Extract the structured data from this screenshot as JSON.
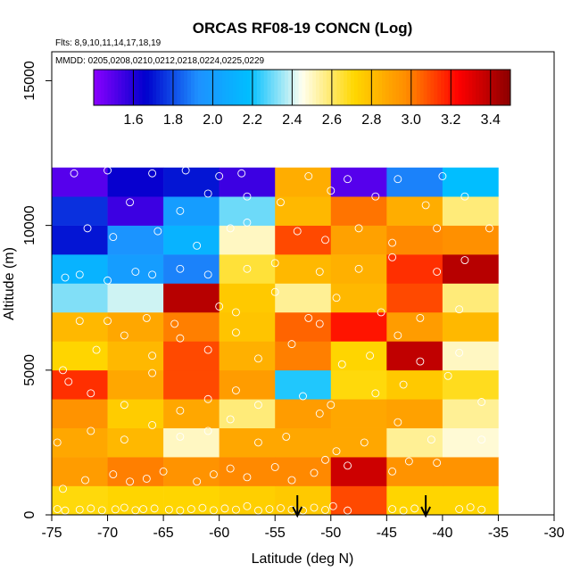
{
  "chart_data": {
    "type": "heatmap",
    "title": "ORCAS RF08-19 CONCN (Log)",
    "subtitle_flights": "Flts: 8,9,10,11,14,17,18,19",
    "subtitle_dates": "MMDD: 0205,0208,0210,0212,0218,0224,0225,0229",
    "xlabel": "Latitude (deg N)",
    "ylabel": "Altitude (m)",
    "xlim": [
      -75,
      -30
    ],
    "ylim": [
      0,
      16000
    ],
    "x_ticks": [
      "-75",
      "-70",
      "-65",
      "-60",
      "-55",
      "-50",
      "-45",
      "-40",
      "-35",
      "-30"
    ],
    "y_ticks": [
      "0",
      "5000",
      "10000",
      "15000"
    ],
    "colorbar": {
      "range": [
        1.4,
        3.5
      ],
      "ticks": [
        "1.6",
        "1.8",
        "2.0",
        "2.2",
        "2.4",
        "2.6",
        "2.8",
        "3.0",
        "3.2",
        "3.4"
      ],
      "colors": [
        "#8b00ff",
        "#0000cd",
        "#1e90ff",
        "#00bfff",
        "#fffff0",
        "#ffd700",
        "#ff8c00",
        "#ff0000",
        "#8b0000"
      ]
    },
    "x_bins": [
      -75,
      -70,
      -65,
      -60,
      -55,
      -50,
      -45,
      -40,
      -35
    ],
    "y_bins": [
      0,
      1000,
      2000,
      3000,
      4000,
      5000,
      6000,
      7000,
      8000,
      9000,
      10000,
      11000,
      12000
    ],
    "cells": [
      [
        2.7,
        2.72,
        2.72,
        2.74,
        2.76,
        3.1,
        2.72,
        2.72
      ],
      [
        2.92,
        3.0,
        2.95,
        2.98,
        2.98,
        3.35,
        2.95,
        2.95
      ],
      [
        2.88,
        2.82,
        2.5,
        2.88,
        2.88,
        2.88,
        2.55,
        2.48
      ],
      [
        2.95,
        2.75,
        2.88,
        2.58,
        2.92,
        2.88,
        2.9,
        2.55
      ],
      [
        3.15,
        2.88,
        3.1,
        2.92,
        2.22,
        2.7,
        2.76,
        2.68
      ],
      [
        2.72,
        2.82,
        3.1,
        2.85,
        3.0,
        2.72,
        3.38,
        2.5
      ],
      [
        2.82,
        2.88,
        3.0,
        2.78,
        3.05,
        3.2,
        2.92,
        2.82
      ],
      [
        2.32,
        2.4,
        3.4,
        2.76,
        2.55,
        2.82,
        3.1,
        2.58
      ],
      [
        2.12,
        2.0,
        1.9,
        2.65,
        2.82,
        2.85,
        3.15,
        3.4
      ],
      [
        1.7,
        1.95,
        2.12,
        2.5,
        3.1,
        2.9,
        2.98,
        2.96
      ],
      [
        1.75,
        1.55,
        2.0,
        2.3,
        2.82,
        3.02,
        2.86,
        2.58
      ],
      [
        1.5,
        1.65,
        1.7,
        1.55,
        2.86,
        1.5,
        1.9,
        2.18
      ]
    ],
    "grid": false,
    "legend": "colorbar-top-inside",
    "markers": {
      "arrows_at_latitude": [
        -53,
        -41.5
      ],
      "points": [
        [
          -74.5,
          200
        ],
        [
          -73.8,
          150
        ],
        [
          -72.5,
          180
        ],
        [
          -71.5,
          220
        ],
        [
          -70.5,
          160
        ],
        [
          -69.3,
          190
        ],
        [
          -68.5,
          250
        ],
        [
          -67.5,
          160
        ],
        [
          -66.8,
          200
        ],
        [
          -65.8,
          220
        ],
        [
          -64.5,
          180
        ],
        [
          -63.5,
          150
        ],
        [
          -62.5,
          200
        ],
        [
          -61.5,
          240
        ],
        [
          -60.5,
          160
        ],
        [
          -59.5,
          220
        ],
        [
          -58.5,
          180
        ],
        [
          -57.5,
          300
        ],
        [
          -56.5,
          150
        ],
        [
          -55.5,
          200
        ],
        [
          -54.5,
          230
        ],
        [
          -53.5,
          180
        ],
        [
          -52.5,
          150
        ],
        [
          -51.5,
          250
        ],
        [
          -50.5,
          170
        ],
        [
          -49.8,
          300
        ],
        [
          -48.5,
          150
        ],
        [
          -44.5,
          200
        ],
        [
          -43.5,
          150
        ],
        [
          -42.5,
          220
        ],
        [
          -38.5,
          200
        ],
        [
          -37.5,
          260
        ],
        [
          -36.5,
          180
        ],
        [
          -74.0,
          900
        ],
        [
          -72.0,
          1200
        ],
        [
          -69.5,
          1400
        ],
        [
          -68.0,
          1150
        ],
        [
          -66.5,
          1250
        ],
        [
          -65.0,
          1500
        ],
        [
          -62.0,
          1150
        ],
        [
          -60.5,
          1400
        ],
        [
          -59.0,
          1600
        ],
        [
          -57.5,
          1300
        ],
        [
          -55.0,
          1650
        ],
        [
          -53.5,
          1200
        ],
        [
          -51.5,
          1450
        ],
        [
          -50.5,
          1900
        ],
        [
          -48.5,
          1700
        ],
        [
          -44.5,
          1500
        ],
        [
          -43.0,
          1850
        ],
        [
          -40.5,
          1800
        ],
        [
          -74.5,
          2500
        ],
        [
          -71.5,
          2900
        ],
        [
          -68.5,
          2600
        ],
        [
          -66.0,
          3100
        ],
        [
          -63.5,
          2700
        ],
        [
          -61.0,
          2900
        ],
        [
          -59.0,
          3300
        ],
        [
          -56.5,
          2500
        ],
        [
          -54.0,
          2700
        ],
        [
          -51.0,
          3500
        ],
        [
          -49.5,
          2200
        ],
        [
          -47.0,
          2500
        ],
        [
          -44.0,
          3200
        ],
        [
          -41.0,
          2600
        ],
        [
          -36.5,
          2600
        ],
        [
          -73.5,
          4600
        ],
        [
          -71.5,
          4200
        ],
        [
          -68.5,
          3800
        ],
        [
          -66.0,
          4900
        ],
        [
          -63.5,
          3600
        ],
        [
          -61.0,
          4000
        ],
        [
          -58.5,
          4300
        ],
        [
          -56.5,
          3800
        ],
        [
          -52.5,
          4100
        ],
        [
          -50.0,
          3800
        ],
        [
          -46.0,
          4200
        ],
        [
          -43.5,
          4500
        ],
        [
          -39.5,
          4800
        ],
        [
          -36.5,
          3900
        ],
        [
          -74.0,
          5000
        ],
        [
          -71.0,
          5700
        ],
        [
          -68.5,
          6200
        ],
        [
          -66.0,
          5500
        ],
        [
          -63.5,
          6100
        ],
        [
          -61.0,
          5700
        ],
        [
          -58.5,
          6300
        ],
        [
          -56.5,
          5400
        ],
        [
          -53.5,
          5900
        ],
        [
          -51.0,
          6600
        ],
        [
          -49.0,
          5200
        ],
        [
          -46.5,
          5500
        ],
        [
          -44.0,
          6200
        ],
        [
          -42.0,
          5300
        ],
        [
          -38.5,
          5600
        ],
        [
          -72.5,
          6700
        ],
        [
          -70.0,
          6700
        ],
        [
          -66.5,
          6800
        ],
        [
          -64.0,
          6600
        ],
        [
          -60.0,
          7200
        ],
        [
          -58.5,
          7000
        ],
        [
          -55.0,
          7700
        ],
        [
          -52.0,
          6800
        ],
        [
          -49.5,
          7500
        ],
        [
          -45.5,
          7000
        ],
        [
          -42.0,
          6800
        ],
        [
          -38.5,
          7100
        ],
        [
          -73.8,
          8200
        ],
        [
          -72.5,
          8300
        ],
        [
          -70.0,
          8100
        ],
        [
          -67.5,
          8400
        ],
        [
          -66.0,
          8300
        ],
        [
          -63.5,
          8500
        ],
        [
          -61.0,
          8300
        ],
        [
          -57.5,
          8500
        ],
        [
          -55.0,
          8700
        ],
        [
          -51.0,
          8400
        ],
        [
          -47.5,
          8500
        ],
        [
          -44.5,
          8900
        ],
        [
          -40.5,
          8400
        ],
        [
          -38.0,
          8800
        ],
        [
          -71.8,
          9900
        ],
        [
          -69.5,
          9600
        ],
        [
          -65.5,
          9800
        ],
        [
          -62.0,
          9300
        ],
        [
          -59.0,
          9900
        ],
        [
          -57.5,
          10100
        ],
        [
          -53.0,
          9800
        ],
        [
          -50.5,
          9500
        ],
        [
          -47.5,
          9900
        ],
        [
          -44.5,
          9400
        ],
        [
          -40.5,
          9900
        ],
        [
          -35.8,
          9900
        ],
        [
          -68.0,
          10800
        ],
        [
          -63.5,
          10500
        ],
        [
          -61.0,
          11100
        ],
        [
          -57.5,
          11000
        ],
        [
          -54.5,
          10800
        ],
        [
          -50.0,
          11200
        ],
        [
          -46.0,
          11000
        ],
        [
          -41.5,
          10700
        ],
        [
          -38.0,
          11000
        ],
        [
          -73.0,
          11800
        ],
        [
          -70.0,
          11900
        ],
        [
          -66.0,
          11800
        ],
        [
          -63.0,
          11900
        ],
        [
          -60.0,
          11700
        ],
        [
          -58.0,
          11800
        ],
        [
          -52.0,
          11700
        ],
        [
          -48.5,
          11600
        ],
        [
          -44.0,
          11600
        ],
        [
          -40.0,
          11700
        ]
      ]
    }
  }
}
